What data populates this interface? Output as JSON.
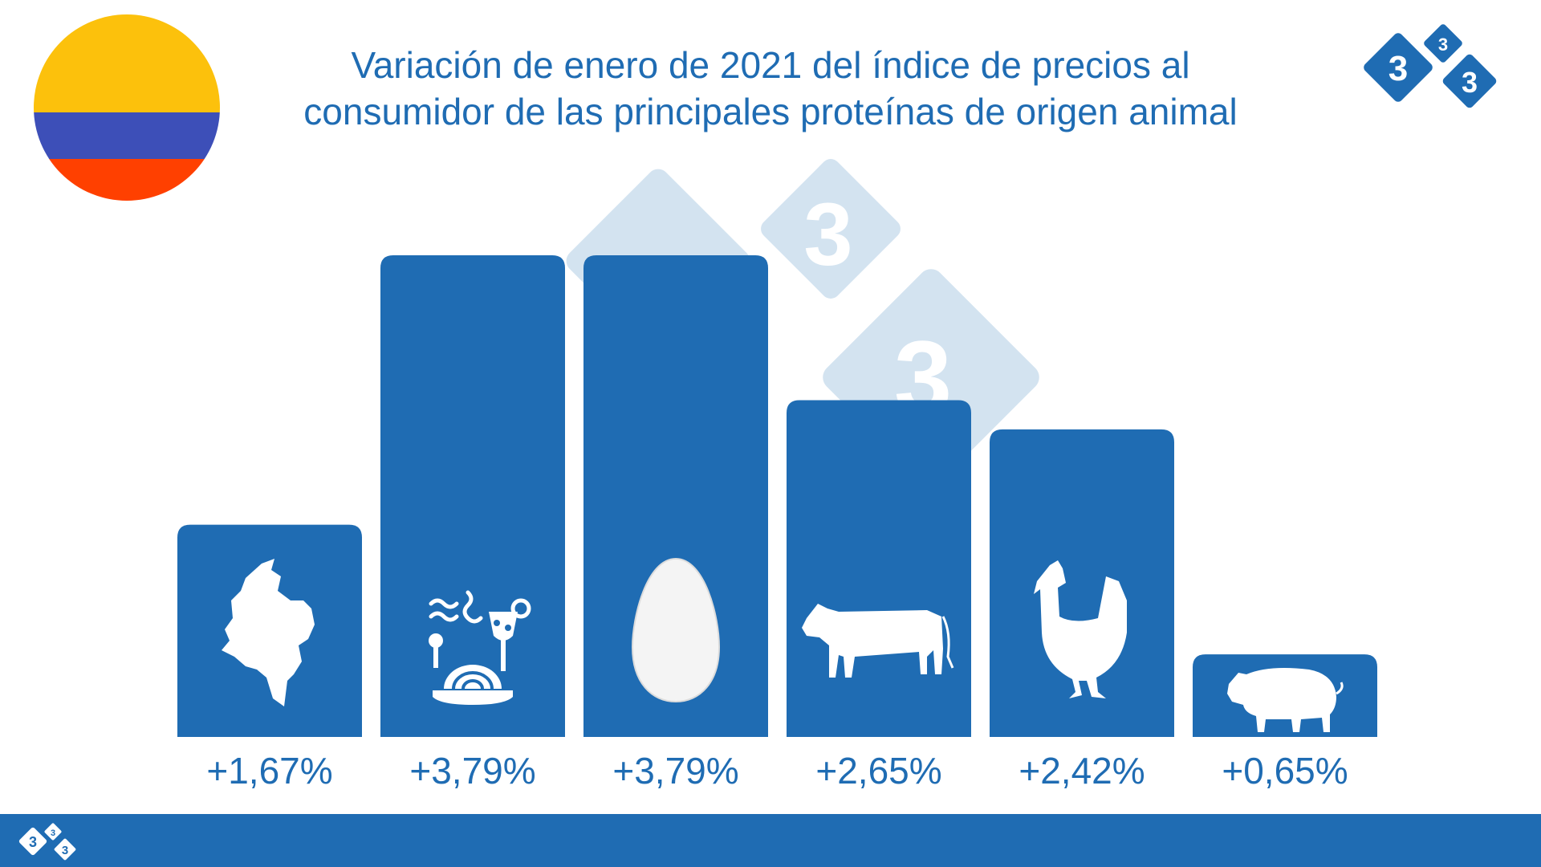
{
  "title_line1": "Variación de enero de 2021 del índice de precios al",
  "title_line2": "consumidor de las principales proteínas de origen animal",
  "logo_digit": "3",
  "colors": {
    "bar": "#1f6cb3",
    "text": "#1f6cb3",
    "watermark": "#d3e3f0",
    "flag_yellow": "#fcc10c",
    "flag_blue": "#3d4fb8",
    "flag_red": "#ff4000"
  },
  "chart_data": {
    "type": "bar",
    "categories": [
      "colombia-map-icon",
      "food-icon",
      "egg-icon",
      "cow-icon",
      "chicken-icon",
      "pig-icon"
    ],
    "values": [
      1.67,
      3.79,
      3.79,
      2.65,
      2.42,
      0.65
    ],
    "value_labels": [
      "+1,67%",
      "+3,79%",
      "+3,79%",
      "+2,65%",
      "+2,42%",
      "+0,65%"
    ],
    "ylim": [
      0,
      3.79
    ],
    "grid": false,
    "legend": "none"
  }
}
